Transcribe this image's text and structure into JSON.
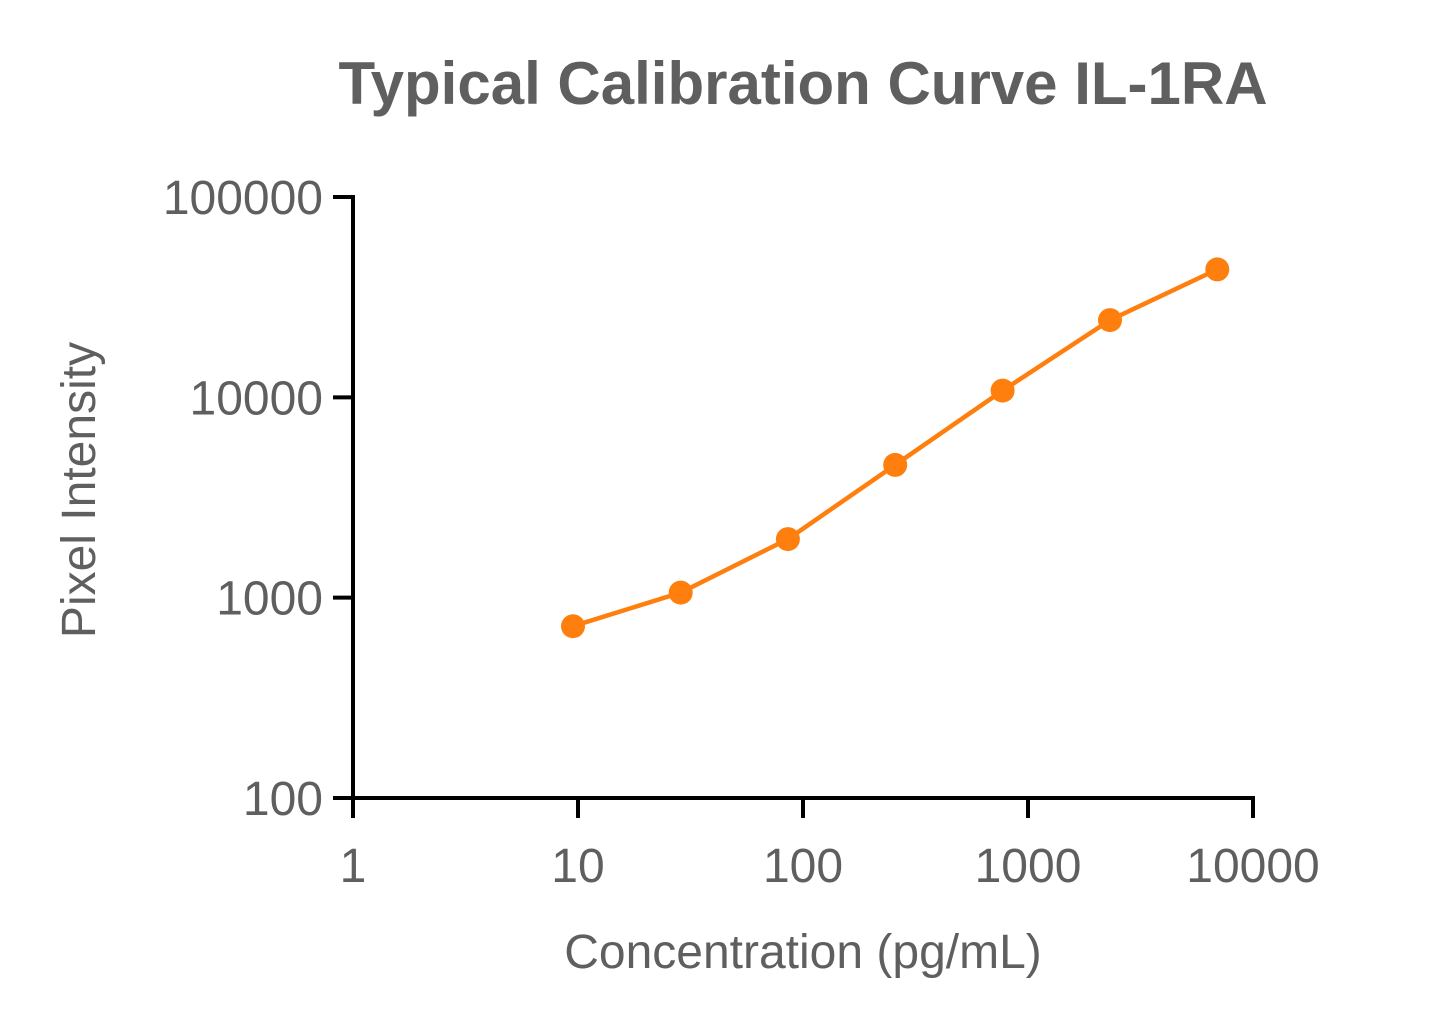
{
  "chart_data": {
    "type": "line",
    "title": "Typical Calibration Curve IL-1RA",
    "xlabel": "Concentration (pg/mL)",
    "ylabel": "Pixel Intensity",
    "x_scale": "log",
    "y_scale": "log",
    "xlim": [
      1,
      10000
    ],
    "ylim": [
      100,
      100000
    ],
    "x_ticks": [
      "1",
      "10",
      "100",
      "1000",
      "10000"
    ],
    "y_ticks": [
      "100",
      "1000",
      "10000",
      "100000"
    ],
    "grid": false,
    "legend": "none",
    "series": [
      {
        "color": "#ff7f0e",
        "marker": "circle",
        "points": [
          {
            "x": 9.5,
            "y": 720
          },
          {
            "x": 28.6,
            "y": 1060
          },
          {
            "x": 85.7,
            "y": 1960
          },
          {
            "x": 257,
            "y": 4600
          },
          {
            "x": 771,
            "y": 10800
          },
          {
            "x": 2314,
            "y": 24300
          },
          {
            "x": 6943,
            "y": 43500
          }
        ]
      }
    ]
  }
}
